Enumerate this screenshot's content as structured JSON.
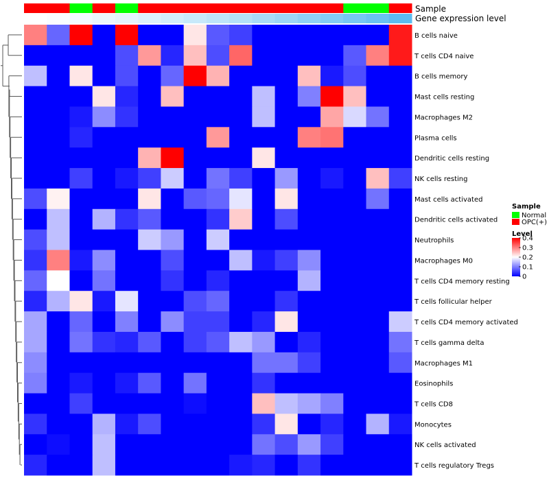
{
  "chart_data": {
    "type": "heatmap",
    "annotation_tracks": [
      "Sample",
      "Gene expression level"
    ],
    "sample_groups": [
      "OPC(+)",
      "OPC(+)",
      "Normal",
      "OPC(+)",
      "Normal",
      "OPC(+)",
      "OPC(+)",
      "OPC(+)",
      "OPC(+)",
      "OPC(+)",
      "OPC(+)",
      "OPC(+)",
      "OPC(+)",
      "OPC(+)",
      "Normal",
      "Normal",
      "OPC(+)"
    ],
    "expression_levels": [
      0.0,
      0.02,
      0.05,
      0.08,
      0.11,
      0.14,
      0.18,
      0.22,
      0.26,
      0.3,
      0.35,
      0.4,
      0.45,
      0.5,
      0.55,
      0.6,
      0.66
    ],
    "rows": [
      "B cells naive",
      "T cells CD4 naive",
      "B cells memory",
      "Mast cells resting",
      "Macrophages M2",
      "Plasma cells",
      "Dendritic cells resting",
      "NK cells resting",
      "Mast cells activated",
      "Dendritic cells activated",
      "Neutrophils",
      "Macrophages M0",
      "T cells CD4 memory resting",
      "T cells follicular helper",
      "T cells CD4 memory activated",
      "T cells gamma delta",
      "Macrophages M1",
      "Eosinophils",
      "T cells CD8",
      "Monocytes",
      "NK cells activated",
      "T cells regulatory  Tregs"
    ],
    "values": [
      [
        0.3,
        0.08,
        0.4,
        0.0,
        0.4,
        0.0,
        0.0,
        0.22,
        0.07,
        0.05,
        0.0,
        0.0,
        0.0,
        0.0,
        0.0,
        0.0,
        0.38
      ],
      [
        0.0,
        0.0,
        0.0,
        0.0,
        0.06,
        0.28,
        0.03,
        0.25,
        0.06,
        0.32,
        0.0,
        0.0,
        0.0,
        0.0,
        0.07,
        0.3,
        0.38
      ],
      [
        0.15,
        0.0,
        0.22,
        0.0,
        0.06,
        0.0,
        0.08,
        0.4,
        0.26,
        0.0,
        0.0,
        0.0,
        0.25,
        0.02,
        0.06,
        0.0,
        0.0
      ],
      [
        0.0,
        0.0,
        0.0,
        0.22,
        0.03,
        0.0,
        0.25,
        0.0,
        0.0,
        0.0,
        0.15,
        0.0,
        0.1,
        0.4,
        0.25,
        0.0,
        0.0
      ],
      [
        0.0,
        0.0,
        0.02,
        0.11,
        0.04,
        0.0,
        0.0,
        0.0,
        0.0,
        0.0,
        0.15,
        0.0,
        0.0,
        0.27,
        0.17,
        0.09,
        0.0
      ],
      [
        0.0,
        0.0,
        0.03,
        0.0,
        0.0,
        0.0,
        0.0,
        0.0,
        0.28,
        0.0,
        0.0,
        0.0,
        0.3,
        0.31,
        0.0,
        0.0,
        0.0
      ],
      [
        0.0,
        0.0,
        0.0,
        0.0,
        0.0,
        0.26,
        0.4,
        0.0,
        0.0,
        0.0,
        0.22,
        0.0,
        0.0,
        0.0,
        0.0,
        0.0,
        0.0
      ],
      [
        0.0,
        0.0,
        0.05,
        0.0,
        0.02,
        0.05,
        0.16,
        0.0,
        0.09,
        0.05,
        0.0,
        0.12,
        0.0,
        0.02,
        0.0,
        0.25,
        0.05
      ],
      [
        0.06,
        0.21,
        0.0,
        0.0,
        0.0,
        0.22,
        0.0,
        0.07,
        0.08,
        0.18,
        0.0,
        0.22,
        0.0,
        0.0,
        0.0,
        0.09,
        0.0
      ],
      [
        0.0,
        0.15,
        0.0,
        0.14,
        0.04,
        0.07,
        0.0,
        0.0,
        0.04,
        0.24,
        0.0,
        0.06,
        0.0,
        0.0,
        0.0,
        0.0,
        0.0
      ],
      [
        0.06,
        0.15,
        0.0,
        0.0,
        0.0,
        0.16,
        0.12,
        0.0,
        0.16,
        0.0,
        0.0,
        0.0,
        0.0,
        0.0,
        0.0,
        0.0,
        0.0
      ],
      [
        0.04,
        0.3,
        0.02,
        0.11,
        0.0,
        0.0,
        0.06,
        0.0,
        0.0,
        0.15,
        0.02,
        0.05,
        0.11,
        0.0,
        0.0,
        0.0,
        0.0
      ],
      [
        0.08,
        0.2,
        0.0,
        0.09,
        0.0,
        0.0,
        0.04,
        0.0,
        0.03,
        0.0,
        0.0,
        0.0,
        0.14,
        0.0,
        0.0,
        0.0,
        0.0
      ],
      [
        0.03,
        0.14,
        0.22,
        0.02,
        0.18,
        0.0,
        0.0,
        0.06,
        0.08,
        0.0,
        0.0,
        0.04,
        0.0,
        0.0,
        0.0,
        0.0,
        0.0
      ],
      [
        0.13,
        0.0,
        0.08,
        0.0,
        0.1,
        0.0,
        0.11,
        0.05,
        0.05,
        0.0,
        0.03,
        0.22,
        0.0,
        0.0,
        0.0,
        0.0,
        0.16
      ],
      [
        0.13,
        0.0,
        0.09,
        0.04,
        0.03,
        0.07,
        0.0,
        0.05,
        0.07,
        0.15,
        0.12,
        0.0,
        0.03,
        0.0,
        0.0,
        0.0,
        0.09
      ],
      [
        0.11,
        0.0,
        0.0,
        0.0,
        0.0,
        0.0,
        0.0,
        0.0,
        0.0,
        0.0,
        0.09,
        0.09,
        0.05,
        0.0,
        0.0,
        0.0,
        0.07
      ],
      [
        0.1,
        0.0,
        0.02,
        0.0,
        0.02,
        0.07,
        0.0,
        0.09,
        0.0,
        0.0,
        0.04,
        0.0,
        0.0,
        0.0,
        0.0,
        0.0,
        0.0
      ],
      [
        0.0,
        0.0,
        0.05,
        0.0,
        0.0,
        0.0,
        0.0,
        0.01,
        0.0,
        0.0,
        0.25,
        0.15,
        0.13,
        0.1,
        0.0,
        0.0,
        0.0
      ],
      [
        0.04,
        0.0,
        0.0,
        0.14,
        0.02,
        0.06,
        0.0,
        0.0,
        0.0,
        0.0,
        0.04,
        0.22,
        0.0,
        0.03,
        0.0,
        0.14,
        0.02
      ],
      [
        0.0,
        0.01,
        0.0,
        0.15,
        0.0,
        0.0,
        0.0,
        0.0,
        0.0,
        0.0,
        0.09,
        0.06,
        0.12,
        0.05,
        0.0,
        0.0,
        0.0
      ],
      [
        0.03,
        0.0,
        0.0,
        0.15,
        0.0,
        0.0,
        0.0,
        0.0,
        0.0,
        0.02,
        0.03,
        0.0,
        0.04,
        0.0,
        0.0,
        0.0,
        0.0
      ]
    ],
    "color_scale": {
      "min": 0,
      "mid": 0.2,
      "max": 0.4,
      "low_color": "#0000ff",
      "mid_color": "#ffffff",
      "high_color": "#ff0000"
    },
    "legend": {
      "sample_title": "Sample",
      "sample_entries": [
        {
          "label": "Normal",
          "color": "#00ff00"
        },
        {
          "label": "OPC(+)",
          "color": "#ff0000"
        }
      ],
      "level_title": "Level",
      "level_ticks": [
        0.4,
        0.3,
        0.2,
        0.1,
        0
      ],
      "level_tick_labels": [
        "0.4",
        "0.3",
        "0.2",
        "0.1",
        "0"
      ],
      "placement": "right"
    },
    "expression_track_colors": [
      "#ffffff",
      "#5bbcf0"
    ]
  }
}
